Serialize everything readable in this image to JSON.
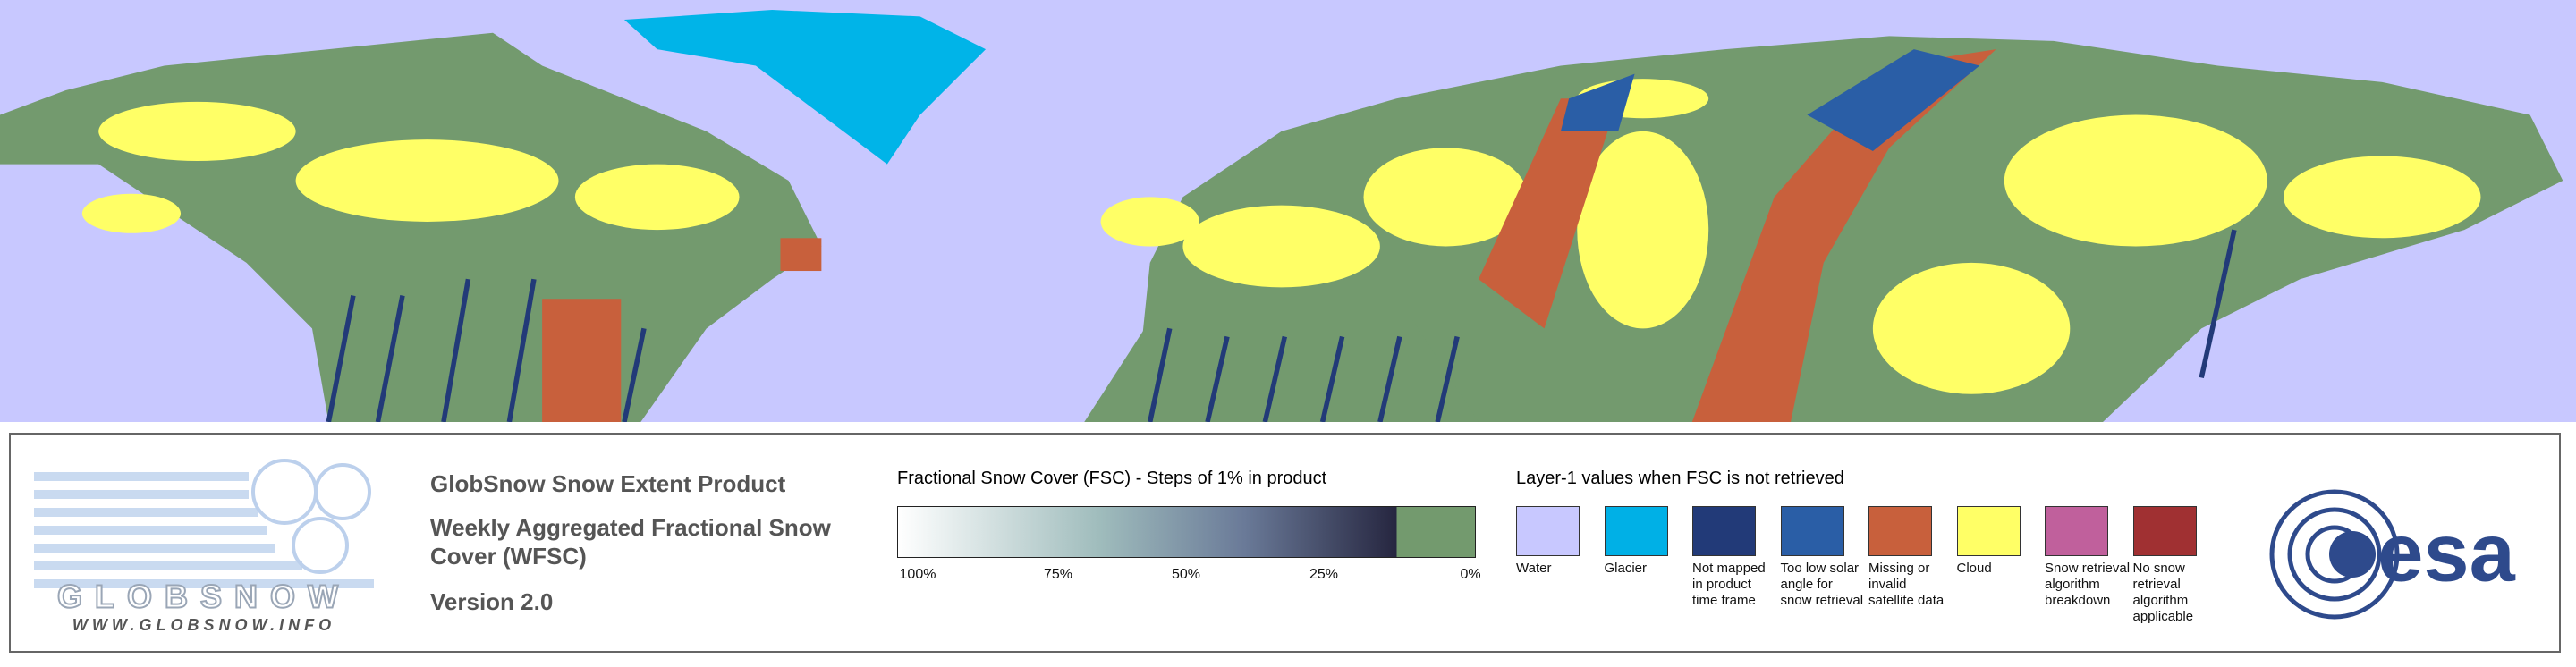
{
  "header": {
    "title": "GlobSnow Snow Extent Product",
    "subtitle": "Weekly Aggregated Fractional Snow Cover (WFSC)",
    "version": "Version 2.0"
  },
  "logo": {
    "name": "GLOBSNOW",
    "url": "WWW.GLOBSNOW.INFO"
  },
  "fsc_legend": {
    "title": "Fractional Snow Cover (FSC) - Steps of 1% in product",
    "ticks": [
      "100%",
      "75%",
      "50%",
      "25%",
      "0%"
    ]
  },
  "layer_legend": {
    "title": "Layer-1 values when FSC is not retrieved",
    "items": [
      {
        "label": "Water",
        "color": "#c8c8ff"
      },
      {
        "label": "Glacier",
        "color": "#00b0e6"
      },
      {
        "label": "Not mapped in product time frame",
        "color": "#223a78"
      },
      {
        "label": "Too low solar angle for snow retrieval",
        "color": "#2a5ea6"
      },
      {
        "label": "Missing or invalid satellite data",
        "color": "#c8603c"
      },
      {
        "label": "Cloud",
        "color": "#ffff66"
      },
      {
        "label": "Snow retrieval algorithm breakdown",
        "color": "#c0609c"
      },
      {
        "label": "No snow retrieval algorithm applicable",
        "color": "#a03032"
      }
    ]
  },
  "agency": "esa"
}
